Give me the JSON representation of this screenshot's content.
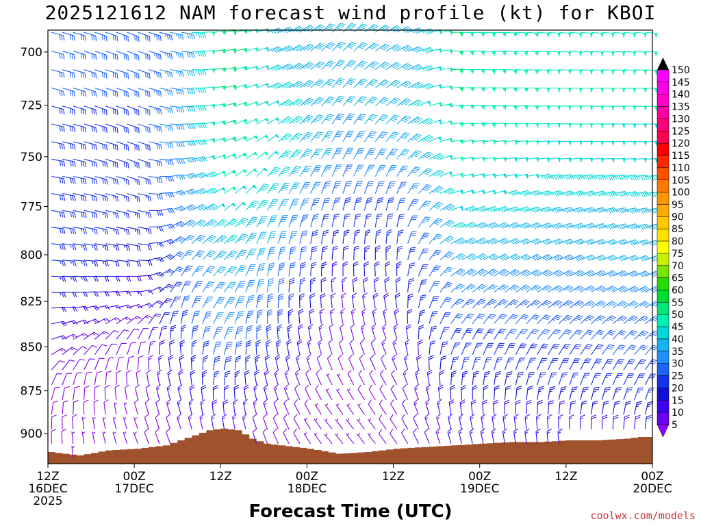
{
  "title": "2025121612 NAM forecast wind profile (kt) for KBOI",
  "credit": "coolwx.com/models",
  "chart_data": {
    "type": "wind-barb-profile",
    "title": "2025121612 NAM forecast wind profile (kt) for KBOI",
    "xlabel": "Forecast Time (UTC)",
    "ylabel": "",
    "ylim": [
      918,
      690
    ],
    "y_ticks": [
      700,
      725,
      750,
      775,
      800,
      825,
      850,
      875,
      900
    ],
    "x_ticks": [
      {
        "hour": 0,
        "lines": [
          "12Z",
          "16DEC",
          "2025"
        ]
      },
      {
        "hour": 12,
        "lines": [
          "00Z",
          "17DEC"
        ]
      },
      {
        "hour": 24,
        "lines": [
          "12Z"
        ]
      },
      {
        "hour": 36,
        "lines": [
          "00Z",
          "18DEC"
        ]
      },
      {
        "hour": 48,
        "lines": [
          "12Z"
        ]
      },
      {
        "hour": 60,
        "lines": [
          "00Z",
          "19DEC"
        ]
      },
      {
        "hour": 72,
        "lines": [
          "12Z"
        ]
      },
      {
        "hour": 84,
        "lines": [
          "00Z",
          "20DEC"
        ]
      }
    ],
    "xlim": [
      0,
      84
    ],
    "colorbar": {
      "levels": [
        5,
        10,
        15,
        20,
        25,
        30,
        35,
        40,
        45,
        50,
        55,
        60,
        65,
        70,
        75,
        80,
        85,
        90,
        95,
        100,
        105,
        110,
        115,
        120,
        125,
        130,
        135,
        140,
        145,
        150
      ],
      "colors": [
        "#8a00e0",
        "#6a00f0",
        "#3c00f5",
        "#1010d8",
        "#1432ee",
        "#1e64ff",
        "#1e90ff",
        "#14b4ee",
        "#00d8d8",
        "#00f0b4",
        "#00e678",
        "#00dc32",
        "#28dc00",
        "#78e600",
        "#c8f000",
        "#ffff00",
        "#ffe000",
        "#ffc800",
        "#ffaa00",
        "#ff9600",
        "#ff7800",
        "#ff5000",
        "#ff2800",
        "#ff0000",
        "#ff0050",
        "#ff0078",
        "#ff00a0",
        "#ff00c8",
        "#ff00e0",
        "#ff00ff"
      ],
      "under_color": "#9000ff",
      "over_color": "#000000"
    },
    "terrain_color": "#a0522d",
    "terrain": {
      "hours": [
        0,
        4,
        8,
        12,
        16,
        18,
        20,
        22,
        24,
        26,
        28,
        30,
        32,
        36,
        40,
        44,
        48,
        52,
        56,
        60,
        64,
        68,
        72,
        76,
        80,
        82,
        84
      ],
      "pressure": [
        911,
        913,
        910,
        909,
        907,
        904,
        901,
        898,
        897,
        898,
        903,
        906,
        907,
        909,
        912,
        911,
        909,
        908,
        907,
        906,
        905,
        905,
        904,
        904,
        903,
        902,
        902
      ]
    },
    "wind_speed_kt_by_hour_and_level": {
      "levels": [
        700,
        725,
        750,
        775,
        800,
        825,
        850,
        875,
        900
      ],
      "series": [
        {
          "hour": 0,
          "speed": [
            30,
            30,
            30,
            30,
            28,
            22,
            14,
            10,
            8
          ]
        },
        {
          "hour": 12,
          "speed": [
            30,
            30,
            28,
            25,
            20,
            15,
            10,
            8,
            6
          ]
        },
        {
          "hour": 18,
          "speed": [
            38,
            40,
            40,
            38,
            35,
            30,
            25,
            18,
            12
          ]
        },
        {
          "hour": 24,
          "speed": [
            60,
            58,
            55,
            50,
            45,
            40,
            35,
            25,
            15
          ]
        },
        {
          "hour": 30,
          "speed": [
            45,
            48,
            50,
            45,
            40,
            35,
            28,
            18,
            10
          ]
        },
        {
          "hour": 40,
          "speed": [
            40,
            40,
            38,
            30,
            22,
            15,
            10,
            6,
            5
          ]
        },
        {
          "hour": 48,
          "speed": [
            40,
            42,
            40,
            30,
            25,
            20,
            14,
            10,
            8
          ]
        },
        {
          "hour": 56,
          "speed": [
            55,
            55,
            52,
            48,
            42,
            35,
            28,
            22,
            15
          ]
        },
        {
          "hour": 70,
          "speed": [
            52,
            52,
            48,
            45,
            40,
            35,
            30,
            25,
            15
          ]
        },
        {
          "hour": 84,
          "speed": [
            50,
            50,
            48,
            45,
            42,
            38,
            32,
            28,
            20
          ]
        }
      ]
    },
    "wind_direction_deg_by_hour_and_level": {
      "levels": [
        700,
        725,
        750,
        775,
        800,
        825,
        850,
        875,
        900
      ],
      "series": [
        {
          "hour": 0,
          "dir": [
            285,
            285,
            280,
            280,
            275,
            270,
            250,
            200,
            180
          ]
        },
        {
          "hour": 12,
          "dir": [
            290,
            290,
            290,
            285,
            280,
            260,
            200,
            170,
            160
          ]
        },
        {
          "hour": 18,
          "dir": [
            280,
            275,
            265,
            245,
            220,
            200,
            175,
            165,
            160
          ]
        },
        {
          "hour": 24,
          "dir": [
            260,
            255,
            245,
            235,
            225,
            215,
            200,
            185,
            170
          ]
        },
        {
          "hour": 30,
          "dir": [
            250,
            245,
            230,
            210,
            195,
            185,
            175,
            165,
            160
          ]
        },
        {
          "hour": 40,
          "dir": [
            220,
            215,
            205,
            195,
            185,
            175,
            165,
            150,
            140
          ]
        },
        {
          "hour": 48,
          "dir": [
            240,
            230,
            215,
            195,
            180,
            170,
            160,
            150,
            145
          ]
        },
        {
          "hour": 56,
          "dir": [
            270,
            265,
            260,
            250,
            240,
            225,
            205,
            180,
            165
          ]
        },
        {
          "hour": 70,
          "dir": [
            275,
            270,
            265,
            255,
            245,
            235,
            215,
            195,
            175
          ]
        },
        {
          "hour": 84,
          "dir": [
            275,
            272,
            268,
            260,
            250,
            240,
            225,
            205,
            185
          ]
        }
      ]
    }
  }
}
